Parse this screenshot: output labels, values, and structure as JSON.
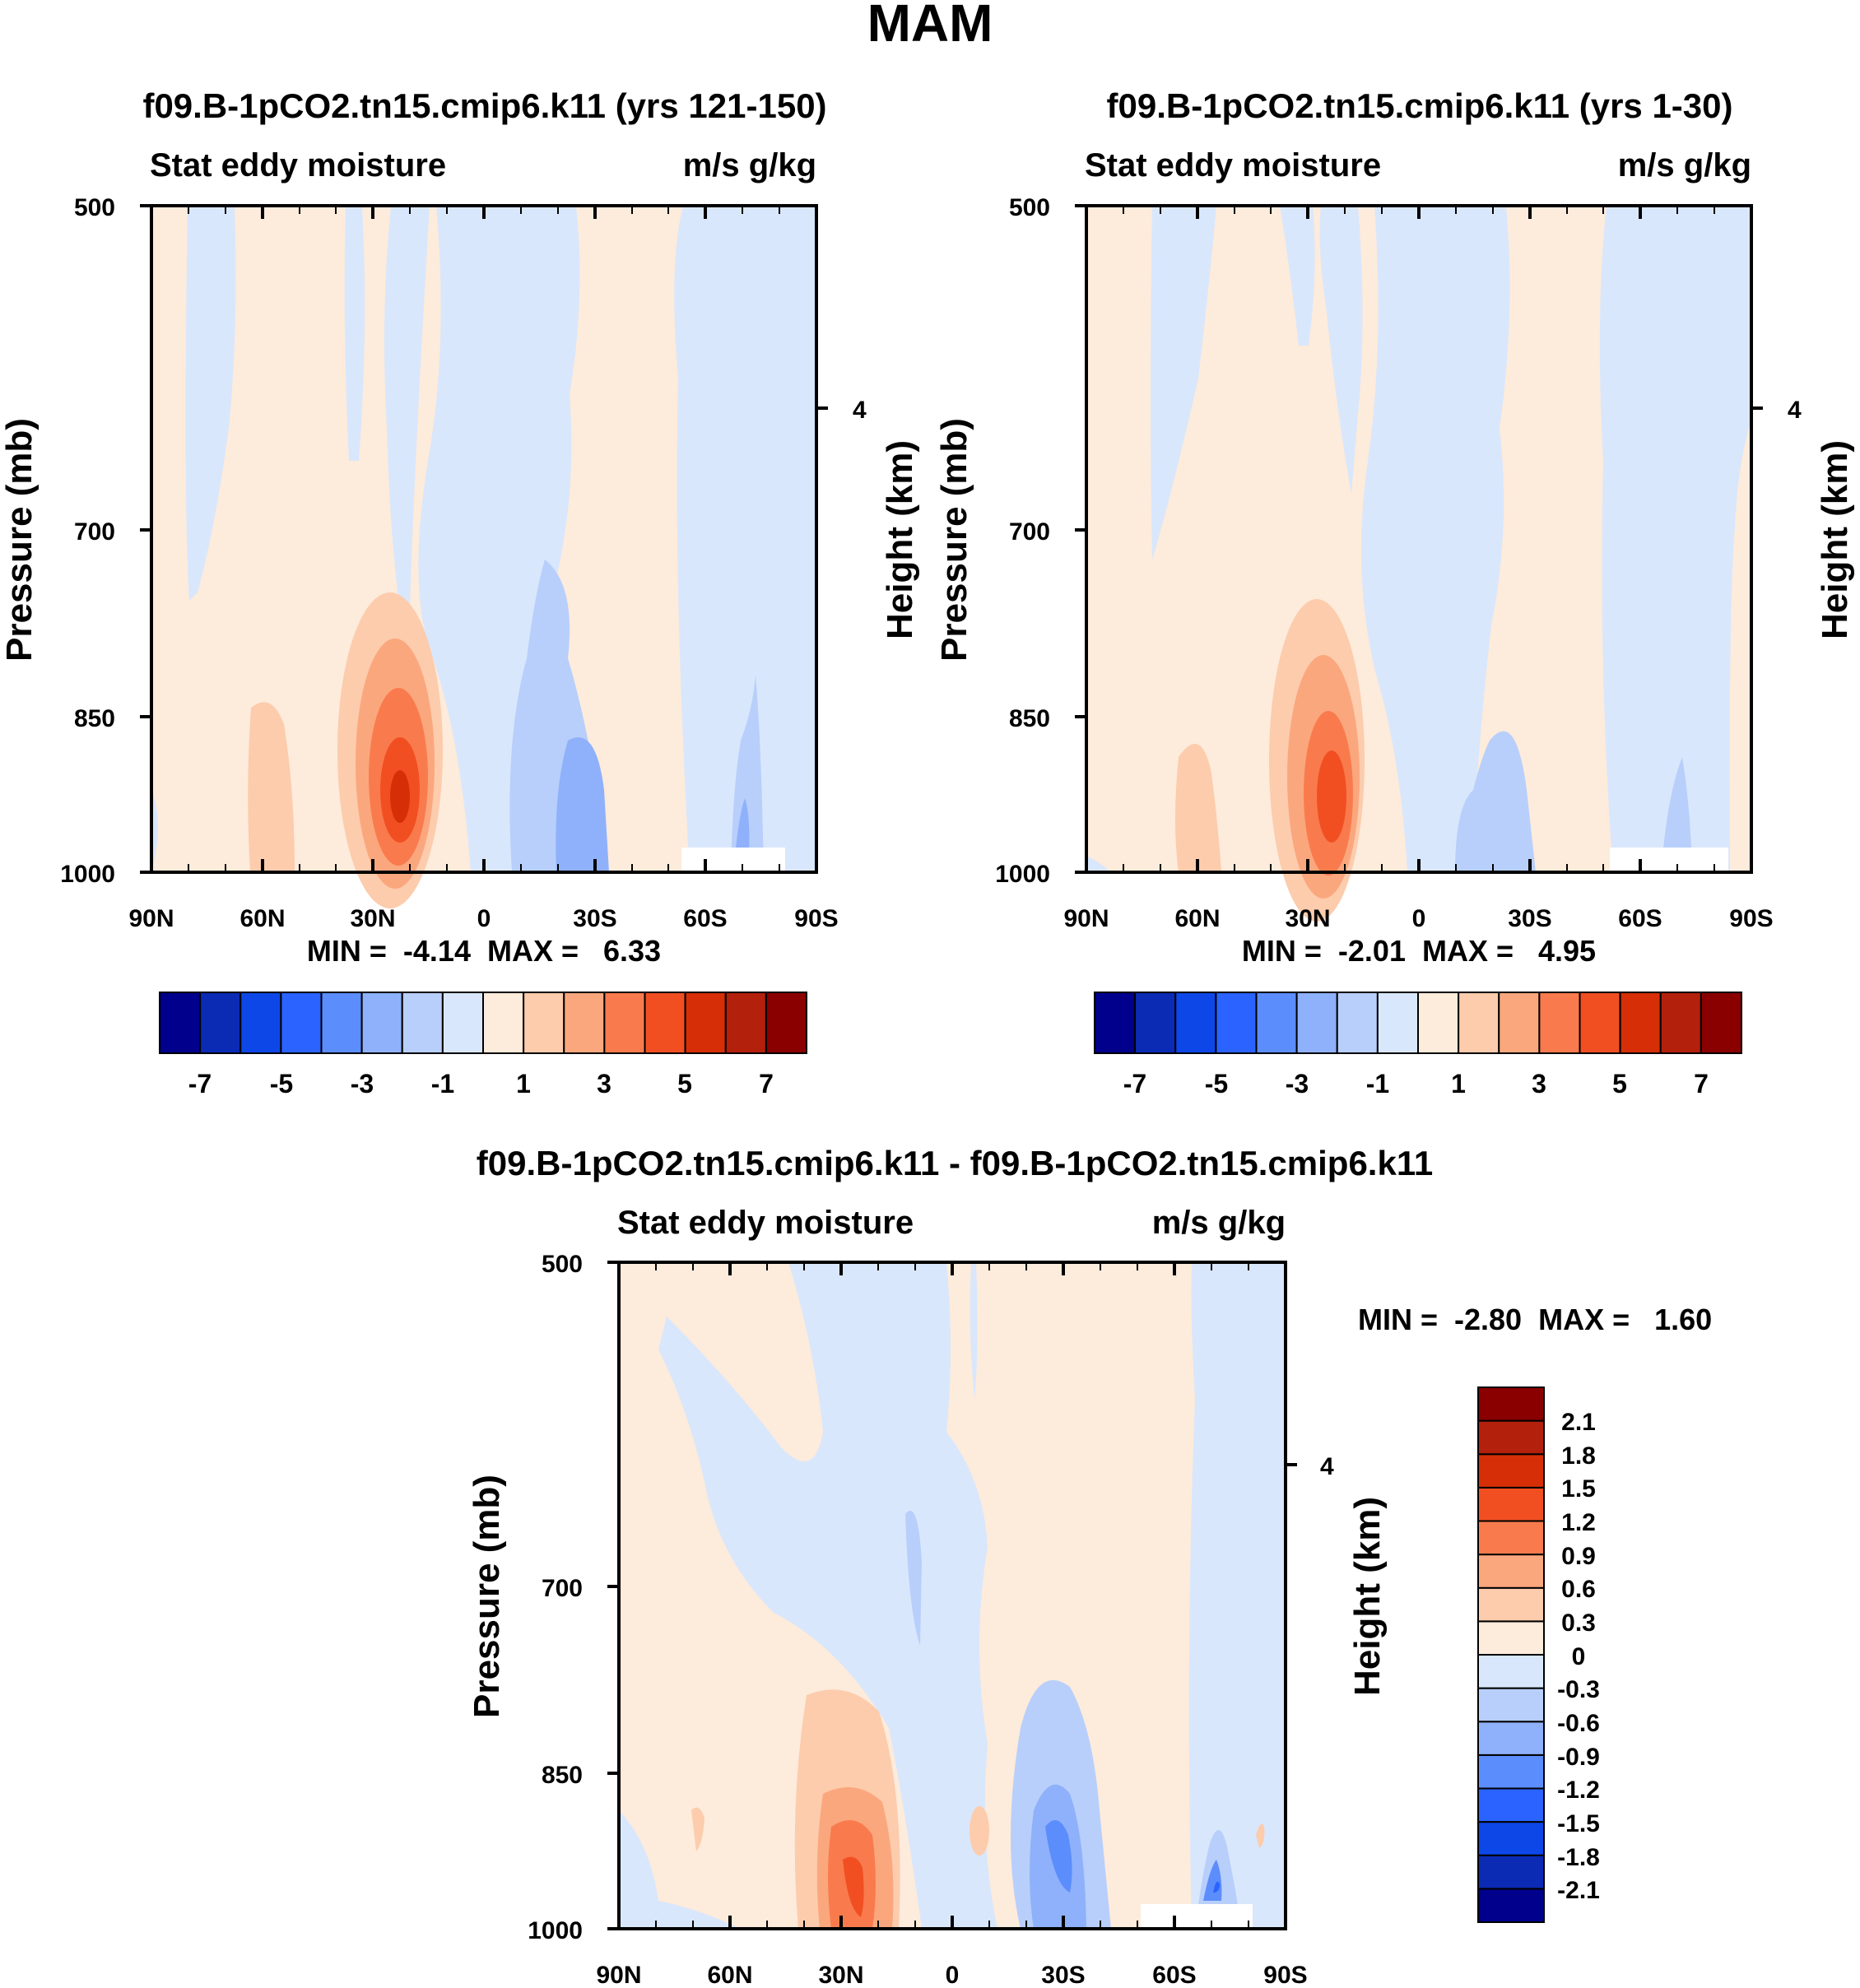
{
  "page_title": "MAM",
  "chart_data": [
    {
      "type": "contour",
      "title": "f09.B-1pCO2.tn15.cmip6.k11 (yrs 121-150)",
      "left_label": "Stat eddy moisture",
      "right_label": "m/s g/kg",
      "ylabel": "Pressure (mb)",
      "ylabel_right": "Height (km)",
      "yticks": [
        "500",
        "700",
        "850",
        "1000"
      ],
      "yticks_right": [
        "4"
      ],
      "xticks": [
        "90N",
        "60N",
        "30N",
        "0",
        "30S",
        "60S",
        "90S"
      ],
      "stats": "MIN =  -4.14  MAX =   6.33",
      "colorbar_labels": [
        "-7",
        "-5",
        "-3",
        "-1",
        "1",
        "3",
        "5",
        "7"
      ],
      "min": -4.14,
      "max": 6.33
    },
    {
      "type": "contour",
      "title": "f09.B-1pCO2.tn15.cmip6.k11 (yrs 1-30)",
      "left_label": "Stat eddy moisture",
      "right_label": "m/s g/kg",
      "ylabel": "Pressure (mb)",
      "ylabel_right": "Height (km)",
      "yticks": [
        "500",
        "700",
        "850",
        "1000"
      ],
      "yticks_right": [
        "4"
      ],
      "xticks": [
        "90N",
        "60N",
        "30N",
        "0",
        "30S",
        "60S",
        "90S"
      ],
      "stats": "MIN =  -2.01  MAX =   4.95",
      "colorbar_labels": [
        "-7",
        "-5",
        "-3",
        "-1",
        "1",
        "3",
        "5",
        "7"
      ],
      "min": -2.01,
      "max": 4.95
    },
    {
      "type": "contour",
      "title": "f09.B-1pCO2.tn15.cmip6.k11 - f09.B-1pCO2.tn15.cmip6.k11",
      "left_label": "Stat eddy moisture",
      "right_label": "m/s g/kg",
      "ylabel": "Pressure (mb)",
      "ylabel_right": "Height (km)",
      "yticks": [
        "500",
        "700",
        "850",
        "1000"
      ],
      "yticks_right": [
        "4"
      ],
      "xticks": [
        "90N",
        "60N",
        "30N",
        "0",
        "30S",
        "60S",
        "90S"
      ],
      "stats": "MIN =  -2.80  MAX =   1.60",
      "colorbar_labels": [
        "2.1",
        "1.8",
        "1.5",
        "1.2",
        "0.9",
        "0.6",
        "0.3",
        "0",
        "-0.3",
        "-0.6",
        "-0.9",
        "-1.2",
        "-1.5",
        "-1.8",
        "-2.1"
      ],
      "min": -2.8,
      "max": 1.6
    }
  ],
  "colorbar_colors": [
    "#00008c",
    "#0b2bb5",
    "#0d47e8",
    "#2a63ff",
    "#5c8dfc",
    "#8fb1fb",
    "#b8cffb",
    "#d9e7fc",
    "#fdebdb",
    "#fcccad",
    "#fba77e",
    "#f97b4d",
    "#f14f22",
    "#d62f07",
    "#b3200c",
    "#8a0000"
  ]
}
